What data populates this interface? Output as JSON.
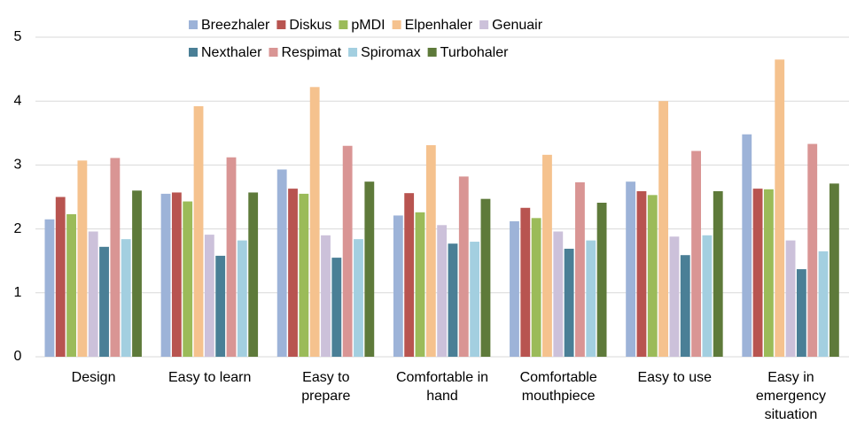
{
  "chart_data": {
    "type": "bar",
    "categories": [
      "Design",
      "Easy to learn",
      "Easy to prepare",
      "Comfortable in hand",
      "Comfortable mouthpiece",
      "Easy to use",
      "Easy in emergency situation"
    ],
    "series": [
      {
        "name": "Breezhaler",
        "color": "#9db3d8",
        "values": [
          2.15,
          2.55,
          2.93,
          2.21,
          2.12,
          2.74,
          3.48
        ]
      },
      {
        "name": "Diskus",
        "color": "#b85450",
        "values": [
          2.5,
          2.57,
          2.63,
          2.56,
          2.33,
          2.59,
          2.63
        ]
      },
      {
        "name": "pMDI",
        "color": "#9bbb59",
        "values": [
          2.23,
          2.43,
          2.55,
          2.26,
          2.17,
          2.53,
          2.62
        ]
      },
      {
        "name": "Elpenhaler",
        "color": "#f5c28e",
        "values": [
          3.07,
          3.92,
          4.22,
          3.31,
          3.16,
          4.0,
          4.65
        ]
      },
      {
        "name": "Genuair",
        "color": "#ccc1da",
        "values": [
          1.96,
          1.91,
          1.9,
          2.06,
          1.96,
          1.88,
          1.82
        ]
      },
      {
        "name": "Nexthaler",
        "color": "#4a7f96",
        "values": [
          1.72,
          1.58,
          1.55,
          1.77,
          1.69,
          1.59,
          1.37
        ]
      },
      {
        "name": "Respimat",
        "color": "#d99594",
        "values": [
          3.11,
          3.12,
          3.3,
          2.82,
          2.73,
          3.22,
          3.33
        ]
      },
      {
        "name": "Spiromax",
        "color": "#a3cfe0",
        "values": [
          1.84,
          1.82,
          1.84,
          1.8,
          1.82,
          1.9,
          1.65
        ]
      },
      {
        "name": "Turbohaler",
        "color": "#5e7a3a",
        "values": [
          2.6,
          2.57,
          2.74,
          2.47,
          2.41,
          2.59,
          2.71
        ]
      }
    ],
    "ylim": [
      0,
      5
    ],
    "yticks": [
      0,
      1,
      2,
      3,
      4,
      5
    ],
    "grid": true
  }
}
